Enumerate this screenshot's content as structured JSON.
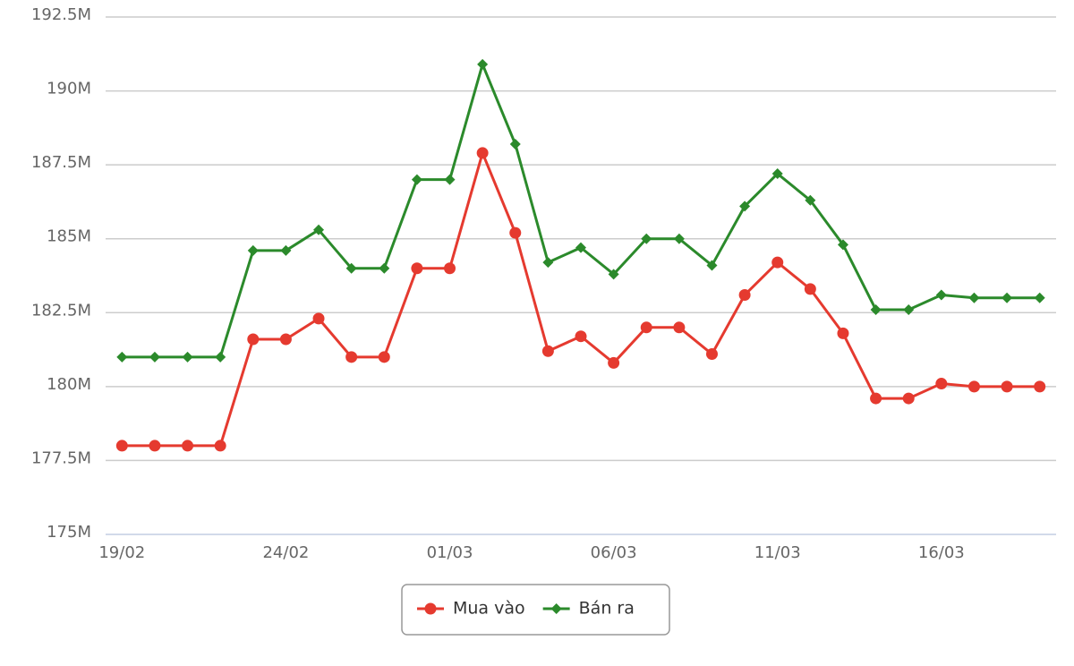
{
  "chart_data": {
    "type": "line",
    "categories": [
      "19/02",
      null,
      null,
      null,
      null,
      "24/02",
      null,
      null,
      null,
      null,
      "01/03",
      null,
      null,
      null,
      null,
      "06/03",
      null,
      null,
      null,
      null,
      "11/03",
      null,
      null,
      null,
      null,
      "16/03",
      null,
      null,
      null
    ],
    "series": [
      {
        "name": "Mua vào",
        "color": "#e53a2f",
        "marker": "circle",
        "values": [
          178,
          178,
          178,
          178,
          181.6,
          181.6,
          182.3,
          181,
          181,
          184,
          184,
          187.9,
          185.2,
          181.2,
          181.7,
          180.8,
          182,
          182,
          181.1,
          183.1,
          184.2,
          183.3,
          181.8,
          179.6,
          179.6,
          180.1,
          180,
          180,
          180
        ]
      },
      {
        "name": "Bán ra",
        "color": "#2b8a2b",
        "marker": "diamond",
        "values": [
          181,
          181,
          181,
          181,
          184.6,
          184.6,
          185.3,
          184,
          184,
          187,
          187,
          190.9,
          188.2,
          184.2,
          184.7,
          183.8,
          185,
          185,
          184.1,
          186.1,
          187.2,
          186.3,
          184.8,
          182.6,
          182.6,
          183.1,
          183,
          183,
          183
        ]
      }
    ],
    "ylim": [
      175,
      192.5
    ],
    "yticks": [
      {
        "value": 175,
        "label": "175M"
      },
      {
        "value": 177.5,
        "label": "177.5M"
      },
      {
        "value": 180,
        "label": "180M"
      },
      {
        "value": 182.5,
        "label": "182.5M"
      },
      {
        "value": 185,
        "label": "185M"
      },
      {
        "value": 187.5,
        "label": "187.5M"
      },
      {
        "value": 190,
        "label": "190M"
      },
      {
        "value": 192.5,
        "label": "192.5M"
      }
    ],
    "grid": true,
    "legend": "bottom"
  }
}
